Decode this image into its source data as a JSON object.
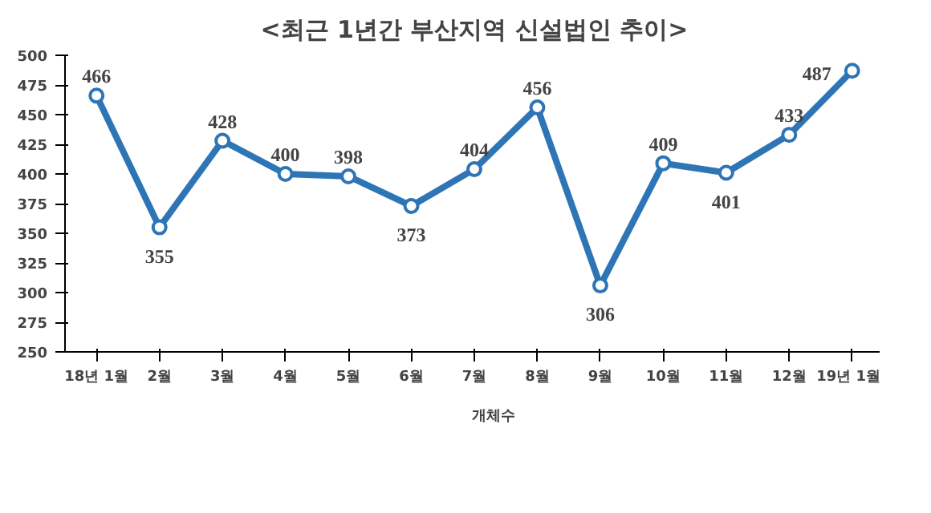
{
  "chart_data": {
    "type": "line",
    "title": "<최근 1년간 부산지역 신설법인 추이>",
    "categories": [
      "18년 1월",
      "2월",
      "3월",
      "4월",
      "5월",
      "6월",
      "7월",
      "8월",
      "9월",
      "10월",
      "11월",
      "12월",
      "19년 1월"
    ],
    "series": [
      {
        "name": "개체수",
        "color": "#2e75b6",
        "values": [
          466,
          355,
          428,
          400,
          398,
          373,
          404,
          456,
          306,
          409,
          401,
          433,
          487
        ]
      }
    ],
    "ylim": [
      250,
      500
    ],
    "yticks": [
      250,
      275,
      300,
      325,
      350,
      375,
      400,
      425,
      450,
      475,
      500
    ],
    "grid": false,
    "legend": "bottom",
    "marker": "circle",
    "line_style": "solid",
    "data_labels": true
  }
}
